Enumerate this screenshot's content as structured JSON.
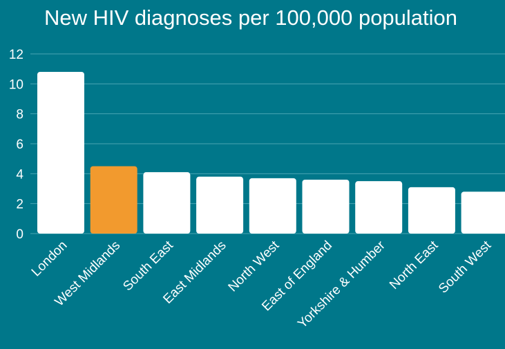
{
  "chart_data": {
    "type": "bar",
    "title": "New HIV diagnoses per 100,000 population",
    "xlabel": "",
    "ylabel": "",
    "categories": [
      "London",
      "West Midlands",
      "South East",
      "East Midlands",
      "North West",
      "East of England",
      "Yorkshire & Humber",
      "North East",
      "South West"
    ],
    "values": [
      10.8,
      4.5,
      4.1,
      3.8,
      3.7,
      3.6,
      3.5,
      3.1,
      2.8
    ],
    "highlight_category": "West Midlands",
    "ylim": [
      0,
      12
    ],
    "yticks": [
      0,
      2,
      4,
      6,
      8,
      10,
      12
    ],
    "grid": true,
    "legend": "none"
  },
  "colors": {
    "background": "#00778a",
    "bar": "#ffffff",
    "highlight": "#f29a2e",
    "gridline": "#4aa5b3",
    "text": "#ffffff"
  }
}
